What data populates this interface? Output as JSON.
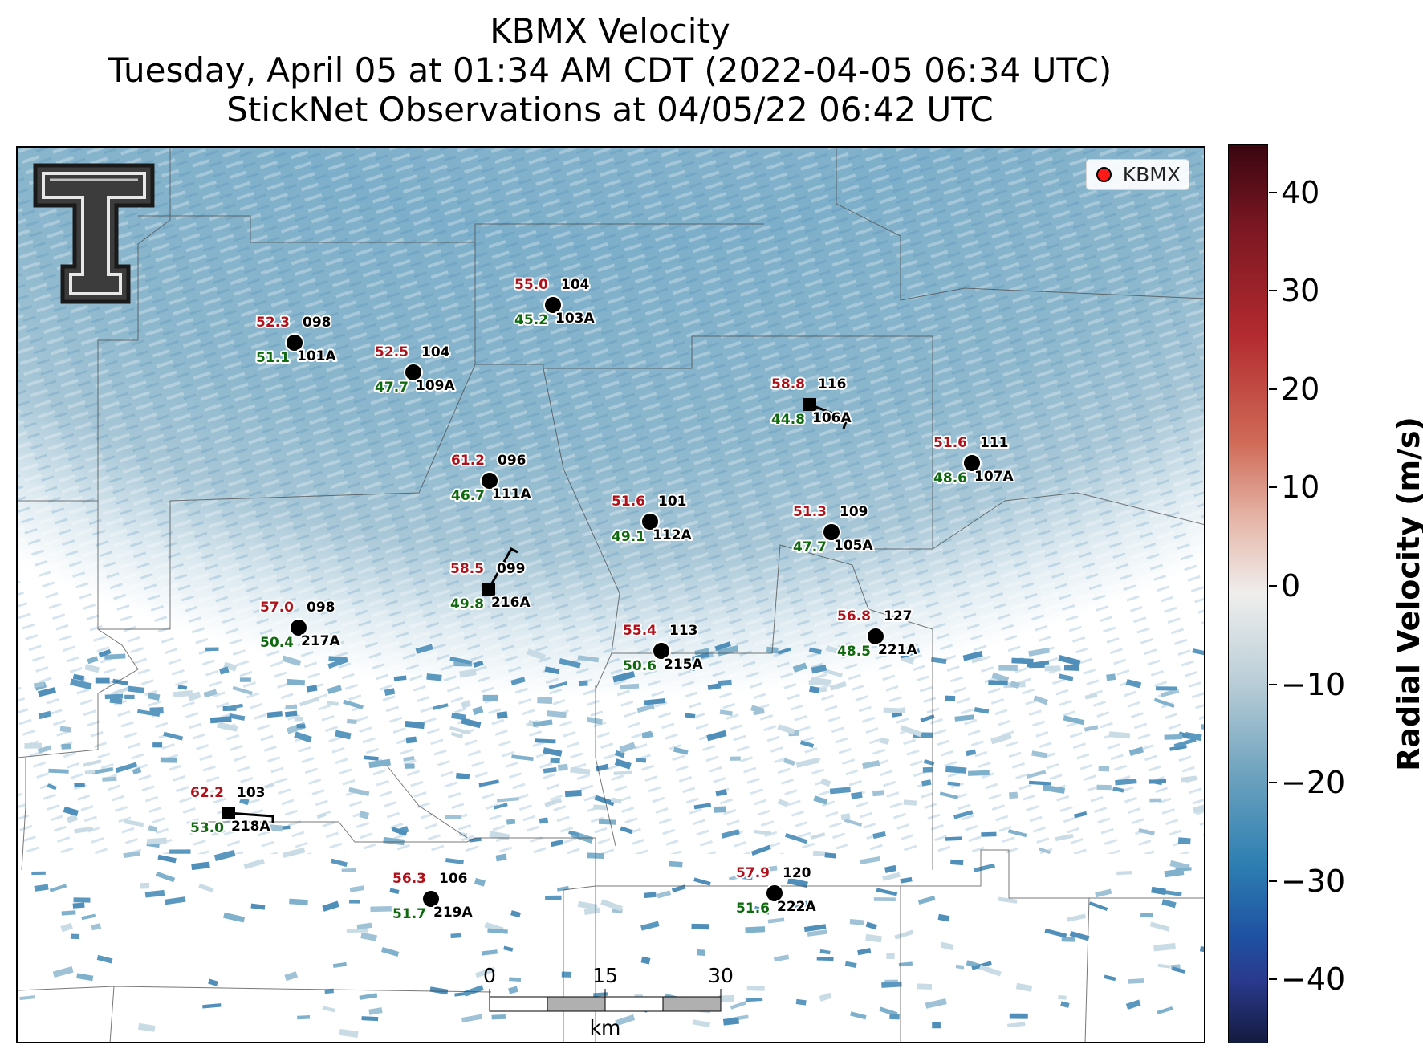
{
  "title": {
    "line1": "KBMX Velocity",
    "line2": "Tuesday, April 05 at 01:34 AM CDT (2022-04-05 06:34 UTC)",
    "line3": "StickNet Observations at 04/05/22 06:42 UTC"
  },
  "legend": {
    "label": "KBMX",
    "marker_color": "#ff1a1a"
  },
  "colorbar": {
    "title": "Radial Velocity (m/s)",
    "ticks": [
      "40",
      "30",
      "20",
      "10",
      "0",
      "−10",
      "−20",
      "−30",
      "−40"
    ],
    "range": [
      -45,
      45
    ],
    "colors": [
      "#141b40",
      "#2a3a8e",
      "#1f52a3",
      "#2e7fb2",
      "#6ea3be",
      "#b9cdd7",
      "#efeeed",
      "#e6b8ab",
      "#cf6a57",
      "#b22a2f",
      "#7a1722",
      "#3a0610"
    ]
  },
  "scale_bar": {
    "labels": [
      "0",
      "15",
      "30"
    ],
    "unit": "km"
  },
  "logo": {
    "name": "texas-tech-double-t-logo"
  },
  "stations": [
    {
      "id": "101A",
      "top": "52.3",
      "direction": "098",
      "bottom": "51.1",
      "marker": "circle"
    },
    {
      "id": "109A",
      "top": "52.5",
      "direction": "104",
      "bottom": "47.7",
      "marker": "circle"
    },
    {
      "id": "103A",
      "top": "55.0",
      "direction": "104",
      "bottom": "45.2",
      "marker": "circle"
    },
    {
      "id": "106A",
      "top": "58.8",
      "direction": "116",
      "bottom": "44.8",
      "marker": "square"
    },
    {
      "id": "107A",
      "top": "51.6",
      "direction": "111",
      "bottom": "48.6",
      "marker": "circle"
    },
    {
      "id": "111A",
      "top": "61.2",
      "direction": "096",
      "bottom": "46.7",
      "marker": "circle"
    },
    {
      "id": "112A",
      "top": "51.6",
      "direction": "101",
      "bottom": "49.1",
      "marker": "circle"
    },
    {
      "id": "105A",
      "top": "51.3",
      "direction": "109",
      "bottom": "47.7",
      "marker": "circle"
    },
    {
      "id": "216A",
      "top": "58.5",
      "direction": "099",
      "bottom": "49.8",
      "marker": "square"
    },
    {
      "id": "217A",
      "top": "57.0",
      "direction": "098",
      "bottom": "50.4",
      "marker": "circle"
    },
    {
      "id": "215A",
      "top": "55.4",
      "direction": "113",
      "bottom": "50.6",
      "marker": "circle"
    },
    {
      "id": "221A",
      "top": "56.8",
      "direction": "127",
      "bottom": "48.5",
      "marker": "circle"
    },
    {
      "id": "218A",
      "top": "62.2",
      "direction": "103",
      "bottom": "53.0",
      "marker": "square"
    },
    {
      "id": "219A",
      "top": "56.3",
      "direction": "106",
      "bottom": "51.7",
      "marker": "circle"
    },
    {
      "id": "222A",
      "top": "57.9",
      "direction": "120",
      "bottom": "51.6",
      "marker": "circle"
    }
  ]
}
